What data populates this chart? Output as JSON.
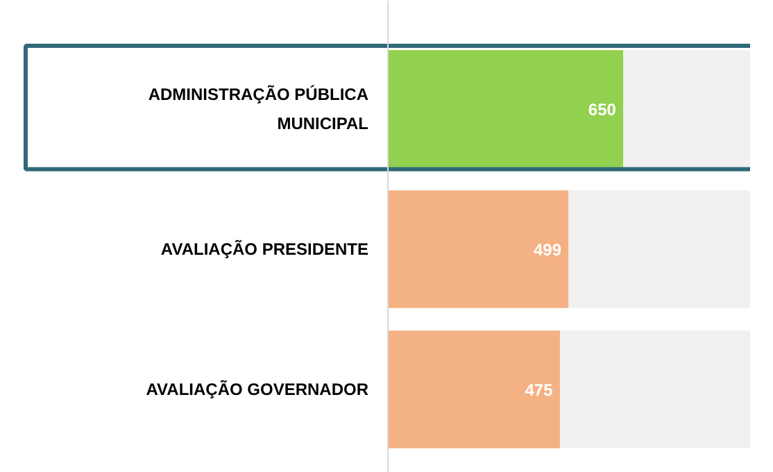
{
  "chart_data": {
    "type": "bar",
    "orientation": "horizontal",
    "stacked": true,
    "categories": [
      "ADMINISTRAÇÃO PÚBLICA MUNICIPAL",
      "AVALIAÇÃO PRESIDENTE",
      "AVALIAÇÃO GOVERNADOR"
    ],
    "series": [
      {
        "colors": [
          "#92d050",
          "#f4b183",
          "#f4b183"
        ],
        "values": [
          650,
          499,
          475
        ],
        "value_labels": [
          "650",
          "499",
          "475"
        ]
      },
      {
        "color": "#f0f0f0",
        "values": [
          350,
          501,
          525
        ]
      }
    ],
    "grid": false
  }
}
